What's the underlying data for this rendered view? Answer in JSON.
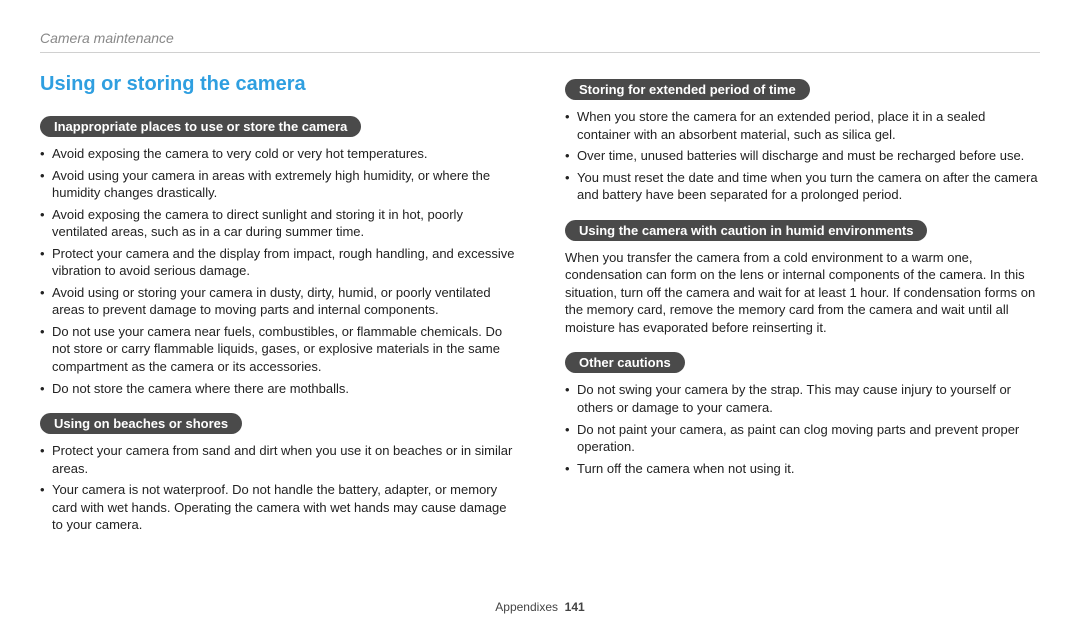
{
  "colors": {
    "heading": "#2f9fe0",
    "pill_bg": "#4a4a4a",
    "text": "#222222",
    "breadcrumb": "#888888",
    "rule": "#d0d0d0"
  },
  "breadcrumb": "Camera maintenance",
  "heading": "Using or storing the camera",
  "left": {
    "sec1": {
      "title": "Inappropriate places to use or store the camera",
      "items": [
        "Avoid exposing the camera to very cold or very hot temperatures.",
        "Avoid using your camera in areas with extremely high humidity, or where the humidity changes drastically.",
        "Avoid exposing the camera to direct sunlight and storing it in hot, poorly ventilated areas, such as in a car during summer time.",
        "Protect your camera and the display from impact, rough handling, and excessive vibration to avoid serious damage.",
        "Avoid using or storing your camera in dusty, dirty, humid, or poorly ventilated areas to prevent damage to moving parts and internal components.",
        "Do not use your camera near fuels, combustibles, or flammable chemicals. Do not store or carry flammable liquids, gases, or explosive materials in the same compartment as the camera or its accessories.",
        "Do not store the camera where there are mothballs."
      ]
    },
    "sec2": {
      "title": "Using on beaches or shores",
      "items": [
        "Protect your camera from sand and dirt when you use it on beaches or in similar areas.",
        "Your camera is not waterproof. Do not handle the battery, adapter, or memory card with wet hands. Operating the camera with wet hands may cause damage to your camera."
      ]
    }
  },
  "right": {
    "sec1": {
      "title": "Storing for extended period of time",
      "items": [
        "When you store the camera for an extended period, place it in a sealed container with an absorbent material, such as silica gel.",
        "Over time, unused batteries will discharge and must be recharged before use.",
        "You must reset the date and time when you turn the camera on after the camera and battery have been separated for a prolonged period."
      ]
    },
    "sec2": {
      "title": "Using the camera with caution in humid environments",
      "body": "When you transfer the camera from a cold environment to a warm one, condensation can form on the lens or internal components of the camera. In this situation, turn off the camera and wait for at least 1 hour. If condensation forms on the memory card, remove the memory card from the camera and wait until all moisture has evaporated before reinserting it."
    },
    "sec3": {
      "title": "Other cautions",
      "items": [
        "Do not swing your camera by the strap. This may cause injury to yourself or others or damage to your camera.",
        "Do not paint your camera, as paint can clog moving parts and prevent proper operation.",
        "Turn off the camera when not using it."
      ]
    }
  },
  "footer": {
    "section": "Appendixes",
    "page": "141"
  }
}
